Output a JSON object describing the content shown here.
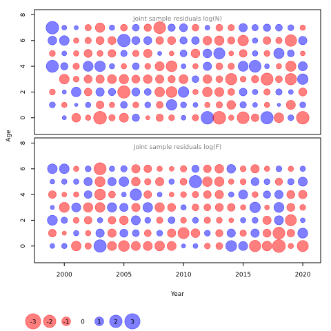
{
  "colors": {
    "negative": "#ff0000",
    "positive": "#0000ff",
    "frame": "#000000",
    "title_text": "#7f7f7f"
  },
  "xlabel": "Year",
  "ylabel": "Age",
  "x_ticks": [
    "2000",
    "2005",
    "2010",
    "2015",
    "2020"
  ],
  "y_ticks": [
    "0",
    "2",
    "4",
    "6",
    "8"
  ],
  "chart_data": [
    {
      "type": "scatter",
      "title": "Joint sample residuals log(N)",
      "xlim": [
        1997.5,
        2021.5
      ],
      "ylim": [
        -1.3,
        8.4
      ],
      "years": [
        1999,
        2000,
        2001,
        2002,
        2003,
        2004,
        2005,
        2006,
        2007,
        2008,
        2009,
        2010,
        2011,
        2012,
        2013,
        2014,
        2015,
        2016,
        2017,
        2018,
        2019,
        2020
      ],
      "ages": [
        0,
        1,
        2,
        3,
        4,
        5,
        6,
        7
      ],
      "residuals": [
        [
          0.0,
          0.3,
          -1.3,
          -0.5,
          -2.8,
          -0.7,
          -1.4,
          0.9,
          -0.3,
          -0.9,
          -0.6,
          0.4,
          -0.7,
          2.7,
          -2.8,
          -0.5,
          -2.4,
          -1.0,
          2.6,
          -1.6,
          0.6,
          -2.7
        ],
        [
          0.6,
          -0.5,
          0.2,
          0.5,
          -1.0,
          -0.5,
          0.8,
          -0.6,
          0.6,
          -0.8,
          1.9,
          0.6,
          0.4,
          -0.5,
          -0.7,
          -1.3,
          0.7,
          0.4,
          -0.5,
          0.2,
          -1.4,
          0.6
        ],
        [
          -0.6,
          0.3,
          1.6,
          -1.0,
          1.2,
          0.9,
          -2.6,
          1.1,
          0.8,
          -1.6,
          -2.0,
          1.9,
          -0.5,
          -1.6,
          -1.4,
          -0.8,
          1.0,
          0.5,
          -0.7,
          0.7,
          0.4,
          -1.1
        ],
        [
          0.0,
          -1.6,
          -0.6,
          -1.1,
          -1.2,
          -1.4,
          -1.5,
          -1.1,
          -1.3,
          -1.2,
          -0.9,
          -1.4,
          0.8,
          -1.3,
          -0.8,
          -2.2,
          -0.6,
          -0.9,
          -2.5,
          -0.8,
          -2.2,
          1.9
        ],
        [
          2.5,
          0.9,
          -0.7,
          1.7,
          1.9,
          0.5,
          -0.5,
          0.8,
          -0.6,
          -1.4,
          -2.0,
          0.4,
          -0.5,
          1.2,
          -0.8,
          -0.7,
          1.7,
          2.4,
          0.4,
          -0.5,
          -1.8,
          1.4
        ],
        [
          -0.6,
          0.4,
          -0.5,
          -1.1,
          -0.6,
          -1.0,
          0.7,
          -0.7,
          -1.2,
          0.3,
          -0.4,
          0.8,
          -1.3,
          1.3,
          2.1,
          -0.4,
          -1.0,
          0.5,
          -0.6,
          1.8,
          0.8,
          -0.4
        ],
        [
          1.3,
          1.6,
          -0.5,
          -0.7,
          -1.1,
          -1.1,
          2.7,
          1.1,
          1.1,
          -1.0,
          -1.1,
          0.9,
          1.0,
          -1.3,
          -1.5,
          -0.9,
          -1.9,
          0.5,
          -1.0,
          -0.7,
          -2.3,
          1.2
        ],
        [
          2.7,
          0.4,
          0.3,
          -0.7,
          -1.5,
          0.5,
          -0.8,
          0.8,
          -0.9,
          -2.4,
          0.9,
          1.1,
          -0.8,
          0.4,
          -0.8,
          -0.7,
          1.2,
          0.7,
          0.9,
          0.8,
          0.6,
          -0.5
        ]
      ]
    },
    {
      "type": "scatter",
      "title": "Joint sample residuals log(F)",
      "xlim": [
        1997.5,
        2021.5
      ],
      "ylim": [
        -1.3,
        8.4
      ],
      "years": [
        1999,
        2000,
        2001,
        2002,
        2003,
        2004,
        2005,
        2006,
        2007,
        2008,
        2009,
        2010,
        2011,
        2012,
        2013,
        2014,
        2015,
        2016,
        2017,
        2018,
        2019,
        2020
      ],
      "ages": [
        0,
        1,
        2,
        3,
        4,
        5,
        6
      ],
      "residuals": [
        [
          0.4,
          0.5,
          -1.6,
          -0.7,
          2.6,
          -1.4,
          -2.0,
          -1.4,
          -1.4,
          -1.6,
          -1.4,
          0.3,
          0.4,
          -0.6,
          -0.8,
          2.0,
          1.4,
          -2.2,
          -1.6,
          -2.8,
          -0.5,
          -2.1
        ],
        [
          -1.0,
          -0.3,
          0.5,
          -0.5,
          1.2,
          -1.2,
          1.1,
          0.8,
          -0.8,
          0.6,
          -1.2,
          -2.1,
          -1.3,
          0.6,
          -0.9,
          1.2,
          -0.7,
          1.2,
          -1.1,
          -2.4,
          -1.0,
          1.7
        ],
        [
          1.7,
          0.7,
          -0.6,
          -1.0,
          0.5,
          -1.0,
          -1.3,
          1.4,
          0.6,
          -0.7,
          0.8,
          -0.6,
          0.6,
          -0.7,
          -0.6,
          -0.4,
          0.5,
          0.6,
          -1.2,
          1.4,
          -2.1,
          0.4
        ],
        [
          0.3,
          -1.7,
          1.4,
          -1.5,
          -1.6,
          1.5,
          1.2,
          -1.2,
          1.6,
          -1.5,
          -1.1,
          0.5,
          -0.8,
          -0.8,
          -1.1,
          -1.0,
          -0.5,
          1.9,
          -0.4,
          1.7,
          -1.1,
          -0.6
        ],
        [
          -1.0,
          -0.4,
          -0.5,
          1.0,
          -2.0,
          -0.8,
          0.4,
          2.2,
          -1.0,
          0.4,
          -0.4,
          -0.6,
          -0.7,
          -1.0,
          -1.2,
          0.5,
          1.4,
          -0.6,
          0.9,
          1.2,
          -1.1,
          -1.2
        ],
        [
          0.4,
          0.5,
          0.5,
          1.2,
          -1.7,
          1.2,
          1.6,
          -1.3,
          -0.7,
          -1.2,
          0.5,
          -0.8,
          2.6,
          -1.6,
          -1.5,
          -0.5,
          -0.6,
          1.1,
          0.6,
          -0.9,
          0.7,
          1.4
        ],
        [
          1.6,
          1.6,
          -0.5,
          0.6,
          -2.5,
          0.5,
          0.7,
          -1.2,
          -1.0,
          -0.5,
          -0.4,
          -0.7,
          0.9,
          -1.0,
          -1.3,
          1.3,
          -0.6,
          -1.2,
          -0.5,
          0.6,
          -0.5,
          0.5
        ]
      ]
    }
  ],
  "legend": {
    "entries": [
      "-3",
      "-2",
      "-1",
      "0",
      "1",
      "2",
      "3"
    ],
    "values": [
      -3,
      -2,
      -1,
      0,
      1,
      2,
      3
    ]
  }
}
